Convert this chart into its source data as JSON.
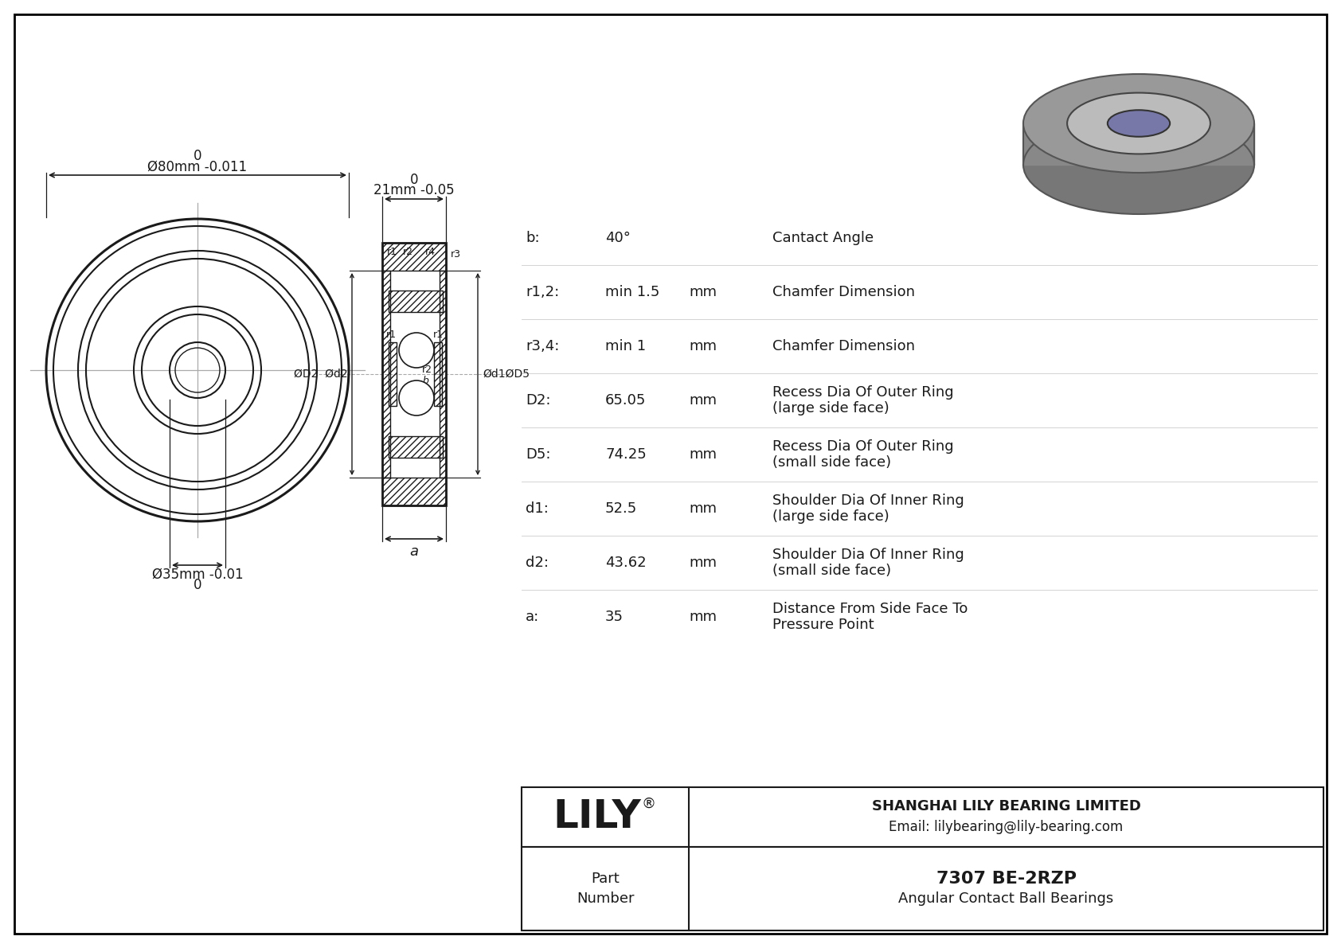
{
  "params": [
    {
      "key": "b:",
      "value": "40°",
      "unit": "",
      "desc1": "Cantact Angle",
      "desc2": ""
    },
    {
      "key": "r1,2:",
      "value": "min 1.5",
      "unit": "mm",
      "desc1": "Chamfer Dimension",
      "desc2": ""
    },
    {
      "key": "r3,4:",
      "value": "min 1",
      "unit": "mm",
      "desc1": "Chamfer Dimension",
      "desc2": ""
    },
    {
      "key": "D2:",
      "value": "65.05",
      "unit": "mm",
      "desc1": "Recess Dia Of Outer Ring",
      "desc2": "(large side face)"
    },
    {
      "key": "D5:",
      "value": "74.25",
      "unit": "mm",
      "desc1": "Recess Dia Of Outer Ring",
      "desc2": "(small side face)"
    },
    {
      "key": "d1:",
      "value": "52.5",
      "unit": "mm",
      "desc1": "Shoulder Dia Of Inner Ring",
      "desc2": "(large side face)"
    },
    {
      "key": "d2:",
      "value": "43.62",
      "unit": "mm",
      "desc1": "Shoulder Dia Of Inner Ring",
      "desc2": "(small side face)"
    },
    {
      "key": "a:",
      "value": "35",
      "unit": "mm",
      "desc1": "Distance From Side Face To",
      "desc2": "Pressure Point"
    }
  ],
  "part_number": "7307 BE-2RZP",
  "bearing_type": "Angular Contact Ball Bearings",
  "company_name": "SHANGHAI LILY BEARING LIMITED",
  "company_email": "Email: lilybearing@lily-bearing.com",
  "logo_text": "LILY",
  "outer_dim": "Ø80mm -0.011",
  "inner_dim": "Ø35mm -0.01",
  "width_dim": "21mm -0.05"
}
